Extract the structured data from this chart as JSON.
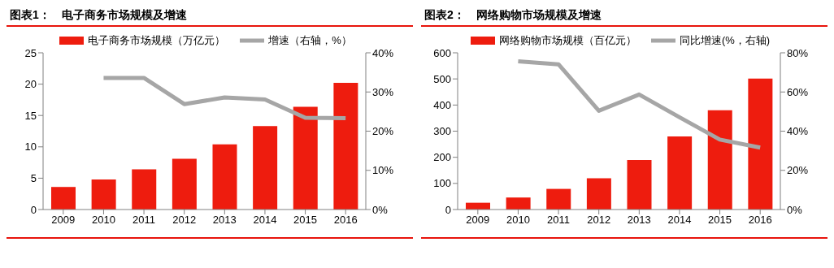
{
  "chart_data": [
    {
      "type": "bar",
      "title": "图表1：　电子商务市场规模及增速",
      "categories": [
        "2009",
        "2010",
        "2011",
        "2012",
        "2013",
        "2014",
        "2015",
        "2016"
      ],
      "series": [
        {
          "name": "电子商务市场规模（万亿元）",
          "color": "#ee1c0e",
          "values": [
            3.6,
            4.8,
            6.4,
            8.1,
            10.4,
            13.3,
            16.4,
            20.2
          ]
        },
        {
          "name": "增速（右轴，%）",
          "type": "line",
          "axis": "y2",
          "color": "#a6a6a6",
          "values": [
            null,
            33.6,
            33.6,
            26.9,
            28.6,
            28.1,
            23.4,
            23.3
          ]
        }
      ],
      "ylim": [
        0,
        25
      ],
      "yticks": [
        0,
        5,
        10,
        15,
        20,
        25
      ],
      "y2lim": [
        0,
        40
      ],
      "y2ticks": [
        {
          "value": 0,
          "label": "0%"
        },
        {
          "value": 10,
          "label": "10%"
        },
        {
          "value": 20,
          "label": "20%"
        },
        {
          "value": 30,
          "label": "30%"
        },
        {
          "value": 40,
          "label": "40%"
        }
      ],
      "grid": false,
      "legend": "top",
      "marker": "none"
    },
    {
      "type": "bar",
      "title": "图表2：　网络购物市场规模及增速",
      "categories": [
        "2009",
        "2010",
        "2011",
        "2012",
        "2013",
        "2014",
        "2015",
        "2016"
      ],
      "series": [
        {
          "name": "网络购物市场规模（百亿元）",
          "color": "#ee1c0e",
          "values": [
            26,
            46,
            79,
            120,
            190,
            280,
            380,
            501
          ]
        },
        {
          "name": "同比增速(%，右轴)",
          "type": "line",
          "axis": "y2",
          "color": "#a6a6a6",
          "values": [
            null,
            75.6,
            74.1,
            50.4,
            58.7,
            47.1,
            35.7,
            31.6
          ]
        }
      ],
      "ylim": [
        0,
        600
      ],
      "yticks": [
        0,
        100,
        200,
        300,
        400,
        500,
        600
      ],
      "y2lim": [
        0,
        80
      ],
      "y2ticks": [
        {
          "value": 0,
          "label": "0%"
        },
        {
          "value": 20,
          "label": "20%"
        },
        {
          "value": 40,
          "label": "40%"
        },
        {
          "value": 60,
          "label": "60%"
        },
        {
          "value": 80,
          "label": "80%"
        }
      ],
      "grid": false,
      "legend": "top",
      "marker": "none"
    }
  ]
}
